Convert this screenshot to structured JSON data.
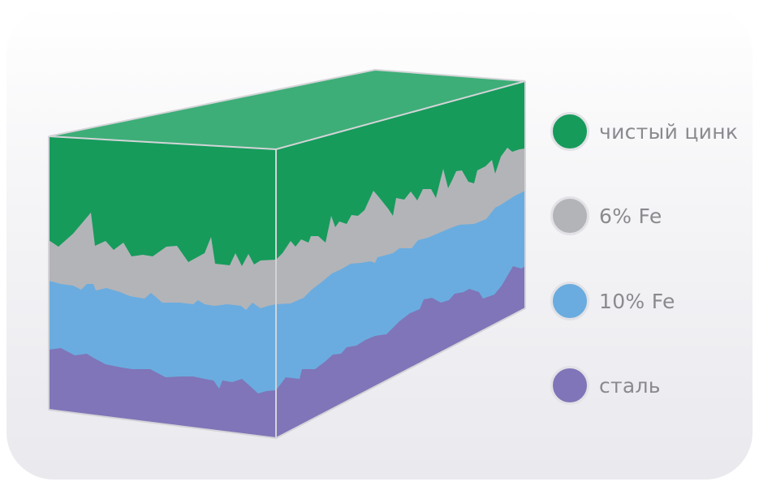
{
  "legend": {
    "items": [
      {
        "label": "чистый цинк",
        "color": "#169b5b"
      },
      {
        "label": "6% Fe",
        "color": "#b3b4b8"
      },
      {
        "label": "10% Fe",
        "color": "#6aacdf"
      },
      {
        "label": "сталь",
        "color": "#8075b8"
      }
    ]
  },
  "colors": {
    "top_face": "#3dae77",
    "edge_lines": "#d4d4d8"
  }
}
